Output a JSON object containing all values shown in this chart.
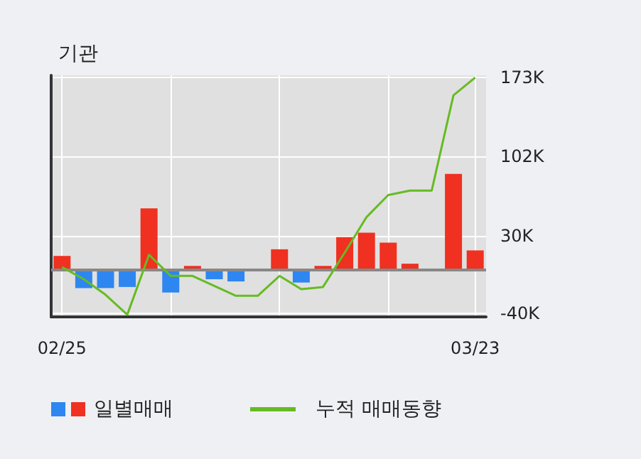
{
  "chart_data": {
    "type": "bar",
    "title": "기관",
    "categories": [
      "02/25",
      null,
      null,
      null,
      null,
      null,
      null,
      null,
      null,
      null,
      null,
      null,
      null,
      null,
      null,
      null,
      null,
      null,
      null,
      "03/23"
    ],
    "series": [
      {
        "name": "일별매매",
        "colors": [
          "#f03020",
          "#2e86f0",
          "#2e86f0",
          "#2e86f0",
          "#f03020",
          "#2e86f0",
          "#f03020",
          "#2e86f0",
          "#2e86f0",
          "#f03020",
          "#f03020",
          "#2e86f0",
          "#f03020",
          "#f03020",
          "#f03020",
          "#f03020",
          "#f03020",
          "#f03020",
          "#f03020",
          "#f03020"
        ],
        "values": [
          12,
          -17,
          -17,
          -16,
          55,
          -21,
          3,
          -9,
          -11,
          0,
          18,
          -12,
          3,
          29,
          33,
          24,
          5,
          0,
          86,
          17
        ]
      },
      {
        "name": "누적 매매동향",
        "type": "line",
        "color": "#66bb22",
        "values": [
          2,
          -9,
          -23,
          -41,
          13,
          -6,
          -6,
          -15,
          -24,
          -24,
          -6,
          -18,
          -16,
          15,
          47,
          67,
          71,
          71,
          157,
          173
        ]
      }
    ],
    "ylim": [
      -43,
      175
    ],
    "yticks": [
      {
        "value": -40,
        "label": "-40K"
      },
      {
        "value": 30,
        "label": "30K"
      },
      {
        "value": 102,
        "label": "102K"
      },
      {
        "value": 173,
        "label": "173K"
      }
    ],
    "ref_lines": [
      {
        "axis": "y",
        "value": 0,
        "label": null,
        "color": "#888888"
      }
    ],
    "grid": true,
    "legend": "bottom left",
    "marker": "none",
    "line_style": "solid"
  }
}
